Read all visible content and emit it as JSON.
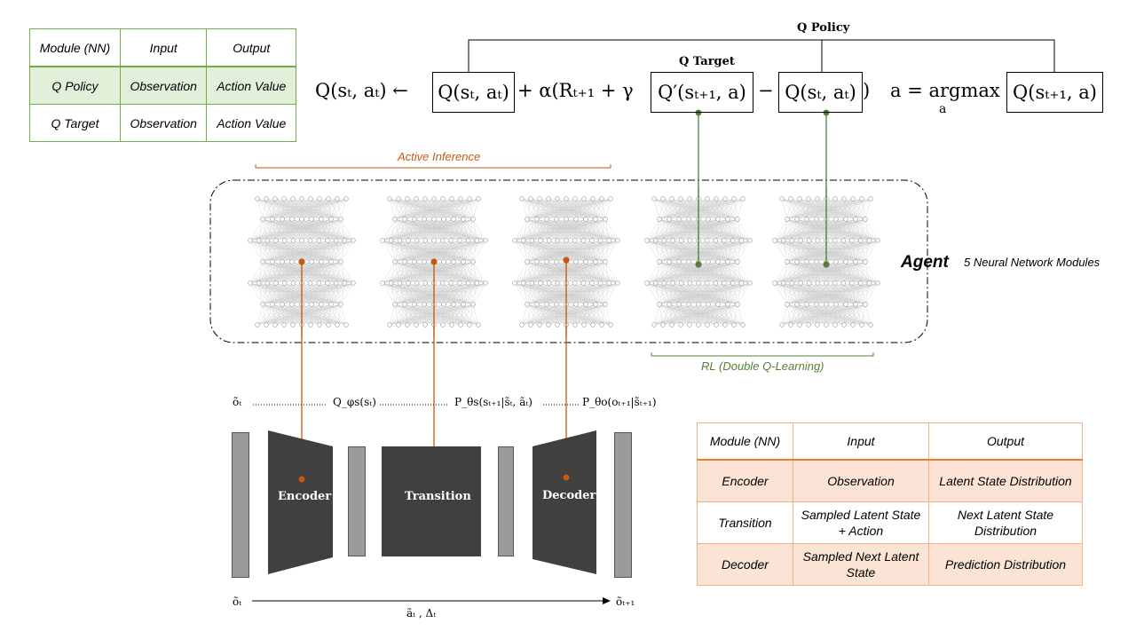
{
  "q_table": {
    "header": [
      "Module (NN)",
      "Input",
      "Output"
    ],
    "rows": [
      [
        "Q Policy",
        "Observation",
        "Action Value"
      ],
      [
        "Q Target",
        "Observation",
        "Action Value"
      ]
    ]
  },
  "formula": {
    "q_policy_label": "Q Policy",
    "q_target_label": "Q Target",
    "lhs": "Q(sₜ, aₜ) ←",
    "term1": "Q(sₜ, aₜ)",
    "plus_alpha": "+ α(Rₜ₊₁ + γ",
    "term2": "Q′(sₜ₊₁, a)",
    "minus": "−",
    "term3": "Q(sₜ, aₜ)",
    "close": ")",
    "argmax": "a = argmax",
    "argmax_sub": "a",
    "term4": "Q(sₜ₊₁, a)"
  },
  "labels": {
    "active_inference": "Active Inference",
    "rl": "RL (Double Q-Learning)",
    "agent": "Agent",
    "agent_sub": "5 Neural Network Modules"
  },
  "pipeline": {
    "o_t_top": "õₜ",
    "q_phi": "Q_φs(sₜ)",
    "p_theta_s": "P_θs(sₜ₊₁|s̃ₜ, ãₜ)",
    "p_theta_o": "P_θo(oₜ₊₁|s̃ₜ₊₁)",
    "encoder": "Encoder",
    "transition": "Transition",
    "decoder": "Decoder",
    "o_t_bottom": "õₜ",
    "a_t_delta": "ãₜ , Δₜ",
    "o_t1": "õₜ₊₁"
  },
  "module_table": {
    "header": [
      "Module (NN)",
      "Input",
      "Output"
    ],
    "rows": [
      [
        "Encoder",
        "Observation",
        "Latent State Distribution"
      ],
      [
        "Transition",
        "Sampled Latent State + Action",
        "Next Latent State Distribution"
      ],
      [
        "Decoder",
        "Sampled Next Latent State",
        "Prediction Distribution"
      ]
    ]
  },
  "colors": {
    "orange": "#c55a11",
    "green": "#538135",
    "block": "#404040",
    "bar": "#9b9b9b"
  }
}
